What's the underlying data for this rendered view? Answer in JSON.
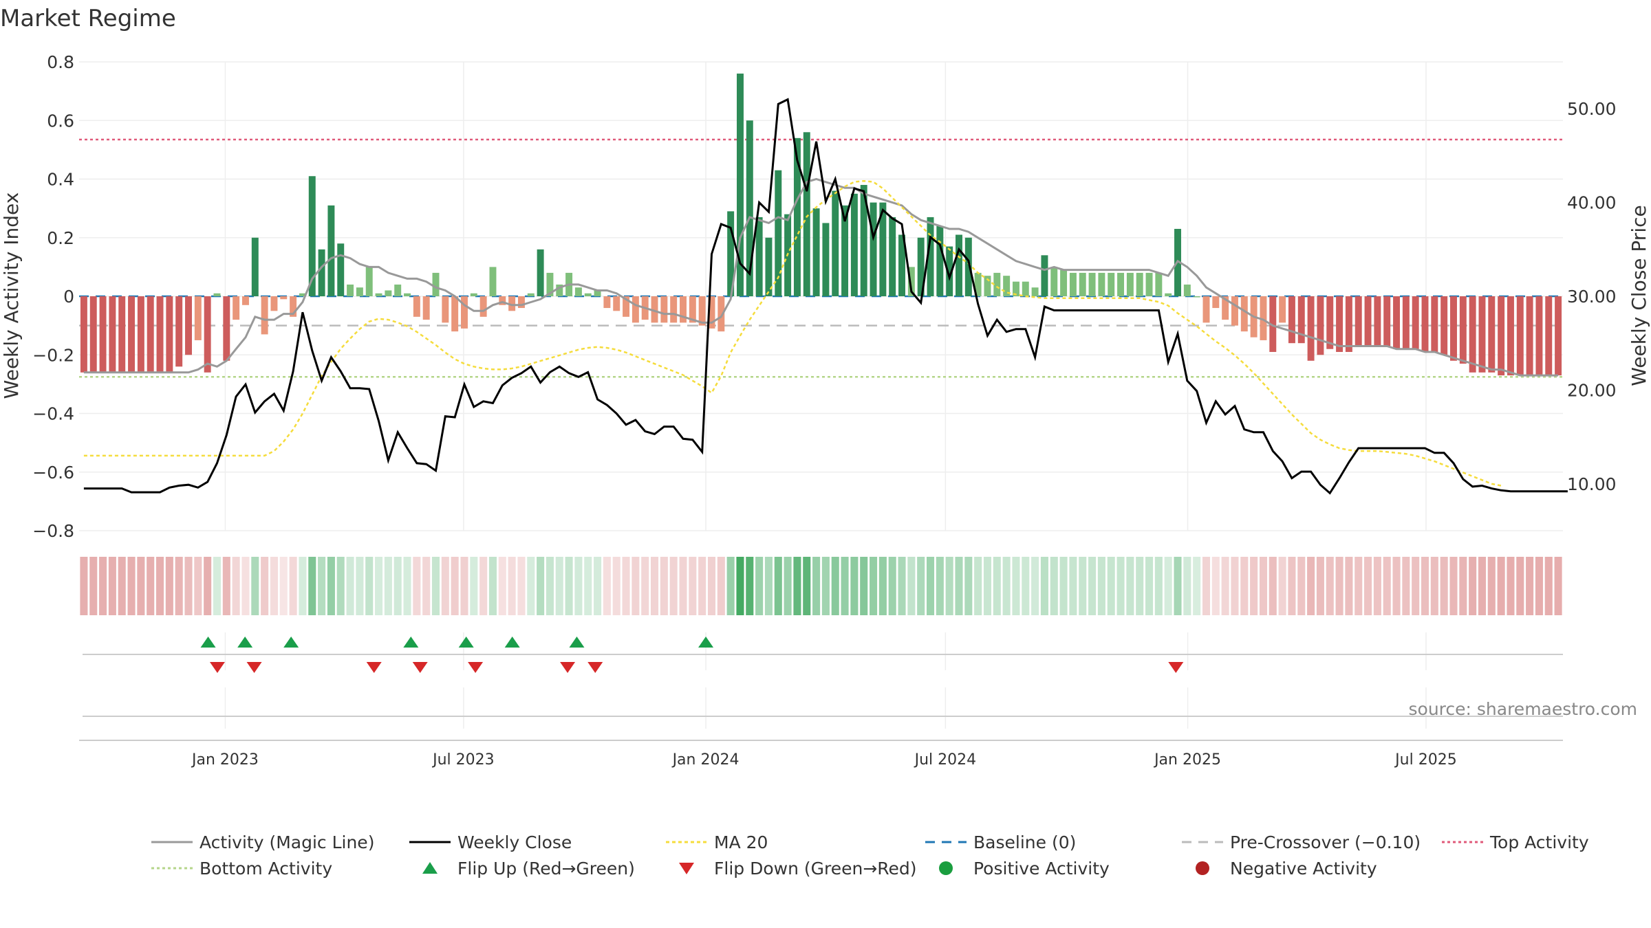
{
  "chart_data": {
    "type": "bar",
    "title": "Market Regime",
    "source": "source: sharemaestro.com",
    "ylabel_left": "Weekly Activity Index",
    "ylabel_right": "Weekly Close Price",
    "ylim_left": [
      -0.8,
      0.8
    ],
    "ylim_right": [
      5,
      55
    ],
    "left_ticks": [
      "0.8",
      "0.6",
      "0.4",
      "0.2",
      "0",
      "−0.2",
      "−0.4",
      "−0.6",
      "−0.8"
    ],
    "right_ticks": [
      "50.00",
      "40.00",
      "30.00",
      "20.00",
      "10.00"
    ],
    "x_ticks": [
      "Jan 2023",
      "Jul 2023",
      "Jan 2024",
      "Jul 2024",
      "Jan 2025",
      "Jul 2025"
    ],
    "x_start": "2022-09-12",
    "x_end": "2025-10-13",
    "reference_lines": {
      "top_activity": 0.535,
      "bottom_activity": -0.275,
      "baseline": 0,
      "pre_crossover": -0.1
    },
    "activity": [
      -0.26,
      -0.26,
      -0.26,
      -0.26,
      -0.26,
      -0.26,
      -0.26,
      -0.26,
      -0.26,
      -0.26,
      -0.24,
      -0.2,
      -0.15,
      -0.26,
      0.01,
      -0.22,
      -0.08,
      -0.03,
      0.2,
      -0.13,
      -0.05,
      -0.01,
      -0.07,
      0.01,
      0.41,
      0.16,
      0.31,
      0.18,
      0.04,
      0.03,
      0.1,
      0.01,
      0.02,
      0.04,
      0.01,
      -0.07,
      -0.08,
      0.08,
      -0.09,
      -0.12,
      -0.11,
      0.01,
      -0.07,
      0.1,
      -0.03,
      -0.05,
      -0.04,
      0.01,
      0.16,
      0.08,
      0.04,
      0.08,
      0.03,
      0.01,
      0.02,
      -0.04,
      -0.05,
      -0.07,
      -0.09,
      -0.08,
      -0.09,
      -0.09,
      -0.09,
      -0.09,
      -0.09,
      -0.1,
      -0.11,
      -0.12,
      0.29,
      0.76,
      0.6,
      0.27,
      0.2,
      0.43,
      0.28,
      0.54,
      0.56,
      0.3,
      0.25,
      0.36,
      0.31,
      0.35,
      0.38,
      0.32,
      0.32,
      0.27,
      0.21,
      0.1,
      0.2,
      0.27,
      0.24,
      0.17,
      0.21,
      0.2,
      0.08,
      0.07,
      0.08,
      0.07,
      0.05,
      0.05,
      0.03,
      0.14,
      0.1,
      0.09,
      0.08,
      0.08,
      0.08,
      0.08,
      0.08,
      0.08,
      0.08,
      0.08,
      0.08,
      0.08,
      0.01,
      0.23,
      0.04,
      0.0,
      -0.09,
      -0.04,
      -0.08,
      -0.1,
      -0.12,
      -0.14,
      -0.15,
      -0.19,
      -0.09,
      -0.16,
      -0.16,
      -0.22,
      -0.2,
      -0.18,
      -0.19,
      -0.19,
      -0.17,
      -0.17,
      -0.17,
      -0.17,
      -0.18,
      -0.18,
      -0.18,
      -0.19,
      -0.19,
      -0.2,
      -0.22,
      -0.23,
      -0.26,
      -0.26,
      -0.26,
      -0.27,
      -0.27,
      -0.27,
      -0.27,
      -0.27,
      -0.27,
      -0.27
    ],
    "weekly_close": [
      9.5,
      9.5,
      9.5,
      9.5,
      9.5,
      9.1,
      9.1,
      9.1,
      9.1,
      9.6,
      9.8,
      9.9,
      9.6,
      10.2,
      12.2,
      15.2,
      19.3,
      20.6,
      17.6,
      18.8,
      19.6,
      17.8,
      22.0,
      28.3,
      24.2,
      21.0,
      23.5,
      22.0,
      20.2,
      20.2,
      20.1,
      16.7,
      12.5,
      15.5,
      13.8,
      12.2,
      12.1,
      11.4,
      17.2,
      17.1,
      20.6,
      18.2,
      18.8,
      18.6,
      20.5,
      21.3,
      21.8,
      22.5,
      20.8,
      21.9,
      22.5,
      21.8,
      21.4,
      21.9,
      19.0,
      18.4,
      17.5,
      16.3,
      16.8,
      15.6,
      15.3,
      16.1,
      16.1,
      14.8,
      14.7,
      13.4,
      34.5,
      37.7,
      37.3,
      33.5,
      32.4,
      40.0,
      39.0,
      50.5,
      51.0,
      44.5,
      41.2,
      46.5,
      40.1,
      42.5,
      38.0,
      41.5,
      41.2,
      36.3,
      39.2,
      38.3,
      37.7,
      30.5,
      29.3,
      36.3,
      35.5,
      32.0,
      35.0,
      33.8,
      29.2,
      25.8,
      27.5,
      26.2,
      26.5,
      26.5,
      23.5,
      28.9,
      28.5,
      28.5,
      28.5,
      28.5,
      28.5,
      28.5,
      28.5,
      28.5,
      28.5,
      28.5,
      28.5,
      28.5,
      23.0,
      26.0,
      21.0,
      19.9,
      16.5,
      18.8,
      17.4,
      18.3,
      15.8,
      15.5,
      15.5,
      13.5,
      12.4,
      10.6,
      11.3,
      11.3,
      9.9,
      9.0,
      10.6,
      12.3,
      13.8,
      13.8,
      13.8,
      13.8,
      13.8,
      13.8,
      13.8,
      13.8,
      13.3,
      13.3,
      12.2,
      10.5,
      9.7,
      9.8,
      9.5,
      9.3,
      9.2,
      9.2,
      9.2,
      9.2,
      9.2,
      9.2,
      9.2
    ],
    "series": [
      {
        "name": "Activity (Magic Line)",
        "values": [
          -0.26,
          -0.26,
          -0.26,
          -0.26,
          -0.26,
          -0.26,
          -0.26,
          -0.26,
          -0.26,
          -0.26,
          -0.26,
          -0.26,
          -0.25,
          -0.23,
          -0.24,
          -0.22,
          -0.18,
          -0.14,
          -0.07,
          -0.08,
          -0.08,
          -0.06,
          -0.06,
          -0.02,
          0.06,
          0.1,
          0.13,
          0.14,
          0.13,
          0.11,
          0.1,
          0.1,
          0.08,
          0.07,
          0.06,
          0.06,
          0.05,
          0.03,
          0.02,
          0.0,
          -0.03,
          -0.05,
          -0.05,
          -0.03,
          -0.02,
          -0.03,
          -0.03,
          -0.02,
          -0.01,
          0.01,
          0.03,
          0.04,
          0.04,
          0.03,
          0.02,
          0.02,
          0.01,
          -0.01,
          -0.03,
          -0.04,
          -0.05,
          -0.06,
          -0.06,
          -0.07,
          -0.08,
          -0.09,
          -0.09,
          -0.07,
          -0.01,
          0.2,
          0.27,
          0.26,
          0.25,
          0.27,
          0.26,
          0.33,
          0.39,
          0.4,
          0.39,
          0.38,
          0.37,
          0.37,
          0.35,
          0.34,
          0.33,
          0.32,
          0.31,
          0.28,
          0.26,
          0.25,
          0.24,
          0.23,
          0.23,
          0.22,
          0.2,
          0.18,
          0.16,
          0.14,
          0.12,
          0.11,
          0.1,
          0.09,
          0.1,
          0.09,
          0.09,
          0.09,
          0.09,
          0.09,
          0.09,
          0.09,
          0.09,
          0.09,
          0.09,
          0.08,
          0.07,
          0.12,
          0.1,
          0.07,
          0.03,
          0.01,
          -0.01,
          -0.03,
          -0.05,
          -0.07,
          -0.08,
          -0.1,
          -0.11,
          -0.12,
          -0.13,
          -0.14,
          -0.15,
          -0.16,
          -0.17,
          -0.17,
          -0.17,
          -0.17,
          -0.17,
          -0.17,
          -0.18,
          -0.18,
          -0.18,
          -0.19,
          -0.19,
          -0.2,
          -0.21,
          -0.22,
          -0.23,
          -0.24,
          -0.25,
          -0.25,
          -0.26,
          -0.27,
          -0.27,
          -0.27,
          -0.27,
          -0.27
        ]
      },
      {
        "name": "Weekly Close"
      },
      {
        "name": "MA 20",
        "values": [
          13.0,
          13.0,
          13.0,
          13.0,
          13.0,
          13.0,
          13.0,
          13.0,
          13.0,
          13.0,
          13.0,
          13.0,
          13.0,
          13.0,
          13.0,
          13.0,
          13.0,
          13.0,
          13.0,
          13.0,
          13.5,
          14.5,
          15.8,
          17.5,
          19.5,
          21.5,
          23.0,
          24.4,
          25.5,
          26.5,
          27.3,
          27.6,
          27.5,
          27.2,
          26.8,
          26.2,
          25.5,
          24.8,
          24.0,
          23.3,
          22.8,
          22.5,
          22.3,
          22.2,
          22.2,
          22.3,
          22.5,
          22.8,
          23.1,
          23.4,
          23.7,
          24.0,
          24.3,
          24.5,
          24.6,
          24.5,
          24.3,
          24.0,
          23.6,
          23.2,
          22.8,
          22.4,
          22.0,
          21.6,
          21.0,
          20.4,
          19.7,
          21.5,
          24.0,
          25.8,
          27.5,
          29.0,
          30.5,
          32.0,
          34.5,
          36.5,
          38.5,
          39.5,
          40.3,
          41.0,
          41.7,
          42.2,
          42.3,
          42.2,
          41.5,
          40.5,
          39.5,
          38.5,
          37.5,
          36.5,
          35.8,
          35.0,
          34.2,
          33.5,
          32.5,
          31.8,
          31.0,
          30.4,
          30.2,
          30.0,
          29.9,
          29.8,
          29.8,
          29.8,
          29.8,
          29.8,
          29.8,
          29.8,
          29.8,
          29.8,
          29.8,
          29.8,
          29.6,
          29.4,
          29.0,
          28.2,
          27.5,
          26.8,
          26.0,
          25.2,
          24.5,
          23.7,
          22.8,
          21.8,
          20.7,
          19.6,
          18.5,
          17.4,
          16.4,
          15.4,
          14.7,
          14.2,
          13.8,
          13.6,
          13.5,
          13.5,
          13.5,
          13.4,
          13.3,
          13.2,
          13.0,
          12.7,
          12.4,
          12.0,
          11.6,
          11.2,
          10.8,
          10.4,
          10.0,
          9.8
        ]
      },
      {
        "name": "Baseline (0)"
      },
      {
        "name": "Pre-Crossover (−0.10)"
      },
      {
        "name": "Top Activity"
      },
      {
        "name": "Bottom Activity"
      },
      {
        "name": "Flip Up (Red→Green)",
        "dates": [
          "2022-12-19",
          "2023-01-16",
          "2023-02-20",
          "2023-05-22",
          "2023-07-03",
          "2023-08-07",
          "2023-09-25",
          "2024-01-01"
        ]
      },
      {
        "name": "Flip Down (Green→Red)",
        "dates": [
          "2022-12-26",
          "2023-01-23",
          "2023-04-24",
          "2023-05-29",
          "2023-07-10",
          "2023-09-18",
          "2023-10-09",
          "2024-12-23"
        ]
      },
      {
        "name": "Positive Activity"
      },
      {
        "name": "Negative Activity"
      }
    ],
    "legend_position": "bottom",
    "grid": true
  },
  "colors": {
    "strong_green": "#2e8b57",
    "light_green": "#7fbf7b",
    "strong_red": "#cd5c5c",
    "light_red": "#e9967a",
    "magic_line": "#999999",
    "close": "#000000",
    "ma20": "#f5dc3c",
    "baseline": "#1f77b4",
    "pre_crossover": "#bbbbbb",
    "top": "#e05a7a",
    "bottom": "#b5d68a",
    "flip_up": "#1a9e4a",
    "flip_down": "#d62728",
    "positive_dot": "#1a9e3f",
    "negative_dot": "#b22222"
  }
}
